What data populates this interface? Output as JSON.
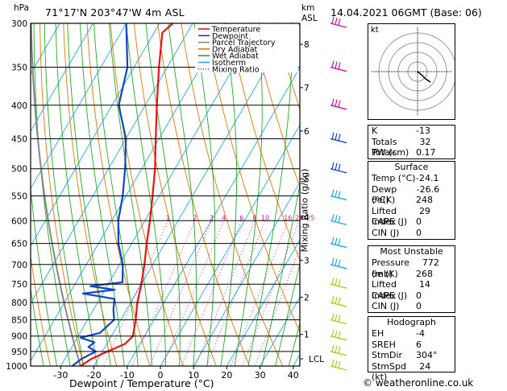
{
  "header": {
    "location": "71°17'N  203°47'W  4m  ASL",
    "datetime": "14.04.2021  06GMT  (Base: 06)",
    "unit_left": "hPa",
    "unit_km": "km",
    "unit_asl": "ASL"
  },
  "chart_data": {
    "type": "line",
    "title": "",
    "xlabel": "Dewpoint / Temperature (°C)",
    "ylabel": "Mixing Ratio (g/kg)",
    "x_ticks": [
      -30,
      -20,
      -10,
      0,
      10,
      20,
      30,
      40
    ],
    "xlim": [
      -40,
      40
    ],
    "pressure_levels": [
      300,
      350,
      400,
      450,
      500,
      550,
      600,
      650,
      700,
      750,
      800,
      850,
      900,
      950,
      1000
    ],
    "height_km": [
      {
        "km": "8",
        "p": 323
      },
      {
        "km": "7",
        "p": 376
      },
      {
        "km": "6",
        "p": 438
      },
      {
        "km": "5",
        "p": 518
      },
      {
        "km": "4",
        "p": 593
      },
      {
        "km": "3",
        "p": 690
      },
      {
        "km": "2",
        "p": 785
      },
      {
        "km": "1",
        "p": 895
      },
      {
        "km": "LCL",
        "p": 975
      }
    ],
    "mixing_ratio_labels": [
      "1",
      "2",
      "3",
      "4",
      "6",
      "8",
      "10",
      "16",
      "20",
      "25"
    ],
    "mixing_ratio_values": [
      1,
      2,
      3,
      4,
      6,
      8,
      10,
      16,
      20,
      25
    ],
    "legend": [
      {
        "name": "Temperature",
        "color": "#ee1111"
      },
      {
        "name": "Dewpoint",
        "color": "#1144cc"
      },
      {
        "name": "Parcel Trajectory",
        "color": "#888888"
      },
      {
        "name": "Dry Adiabat",
        "color": "#dd7700"
      },
      {
        "name": "Wet Adiabat",
        "color": "#22aa22"
      },
      {
        "name": "Isotherm",
        "color": "#22aadd"
      },
      {
        "name": "Mixing Ratio",
        "color": "#cc1199"
      }
    ],
    "temperature_profile": [
      {
        "p": 1000,
        "t": -24.1
      },
      {
        "p": 975,
        "t": -22.0
      },
      {
        "p": 950,
        "t": -18.5
      },
      {
        "p": 925,
        "t": -14.5
      },
      {
        "p": 900,
        "t": -13.5
      },
      {
        "p": 850,
        "t": -15.5
      },
      {
        "p": 800,
        "t": -18.0
      },
      {
        "p": 750,
        "t": -20.0
      },
      {
        "p": 700,
        "t": -22.5
      },
      {
        "p": 650,
        "t": -25.5
      },
      {
        "p": 600,
        "t": -28.5
      },
      {
        "p": 550,
        "t": -32.0
      },
      {
        "p": 500,
        "t": -36.0
      },
      {
        "p": 450,
        "t": -41.0
      },
      {
        "p": 400,
        "t": -46.5
      },
      {
        "p": 350,
        "t": -52.5
      },
      {
        "p": 310,
        "t": -57.5
      },
      {
        "p": 300,
        "t": -56.0
      }
    ],
    "dewpoint_profile": [
      {
        "p": 1000,
        "t": -26.6
      },
      {
        "p": 975,
        "t": -25.0
      },
      {
        "p": 950,
        "t": -22.0
      },
      {
        "p": 935,
        "t": -25.0
      },
      {
        "p": 920,
        "t": -24.0
      },
      {
        "p": 905,
        "t": -29.0
      },
      {
        "p": 890,
        "t": -24.0
      },
      {
        "p": 870,
        "t": -23.0
      },
      {
        "p": 850,
        "t": -22.0
      },
      {
        "p": 820,
        "t": -24.0
      },
      {
        "p": 790,
        "t": -25.5
      },
      {
        "p": 775,
        "t": -36.0
      },
      {
        "p": 765,
        "t": -27.0
      },
      {
        "p": 755,
        "t": -35.0
      },
      {
        "p": 745,
        "t": -26.0
      },
      {
        "p": 700,
        "t": -29.0
      },
      {
        "p": 650,
        "t": -34.0
      },
      {
        "p": 600,
        "t": -38.0
      },
      {
        "p": 550,
        "t": -41.0
      },
      {
        "p": 500,
        "t": -45.0
      },
      {
        "p": 450,
        "t": -50.0
      },
      {
        "p": 400,
        "t": -58.0
      },
      {
        "p": 350,
        "t": -62.0
      },
      {
        "p": 300,
        "t": -70.0
      }
    ]
  },
  "xlabel_text": "Dewpoint / Temperature (°C)",
  "ylabel_text": "Mixing Ratio (g/kg)",
  "hodograph_unit": "kt",
  "indices": {
    "rows": [
      {
        "label": "K",
        "value": "-13"
      },
      {
        "label": "Totals Totals",
        "value": "32"
      },
      {
        "label": "PW (cm)",
        "value": "0.17"
      }
    ]
  },
  "surface": {
    "title": "Surface",
    "rows": [
      {
        "label": "Temp (°C)",
        "value": "-24.1"
      },
      {
        "label": "Dewp (°C)",
        "value": "-26.6"
      },
      {
        "label": "θe(K)",
        "value": "248"
      },
      {
        "label": "Lifted Index",
        "value": "29"
      },
      {
        "label": "CAPE (J)",
        "value": "0"
      },
      {
        "label": "CIN (J)",
        "value": "0"
      }
    ]
  },
  "most_unstable": {
    "title": "Most Unstable",
    "rows": [
      {
        "label": "Pressure (mb)",
        "value": "772"
      },
      {
        "label": "θe (K)",
        "value": "268"
      },
      {
        "label": "Lifted Index",
        "value": "14"
      },
      {
        "label": "CAPE (J)",
        "value": "0"
      },
      {
        "label": "CIN (J)",
        "value": "0"
      }
    ]
  },
  "hodograph": {
    "title": "Hodograph",
    "rows": [
      {
        "label": "EH",
        "value": "-4"
      },
      {
        "label": "SREH",
        "value": "6"
      },
      {
        "label": "StmDir",
        "value": "304°"
      },
      {
        "label": "StmSpd (kt)",
        "value": "24"
      }
    ]
  },
  "copyright": "© weatheronline.co.uk",
  "colors": {
    "temperature": "#ee1111",
    "dewpoint": "#1144cc",
    "parcel": "#888888",
    "dry_adiabat": "#dd7700",
    "wet_adiabat": "#22aa22",
    "isotherm": "#22aadd",
    "mixing_ratio": "#cc1199",
    "barb_upper": "#cc1199",
    "barb_mid": "#1144cc",
    "barb_low": "#22aadd",
    "barb_sfc": "#aacc22"
  }
}
